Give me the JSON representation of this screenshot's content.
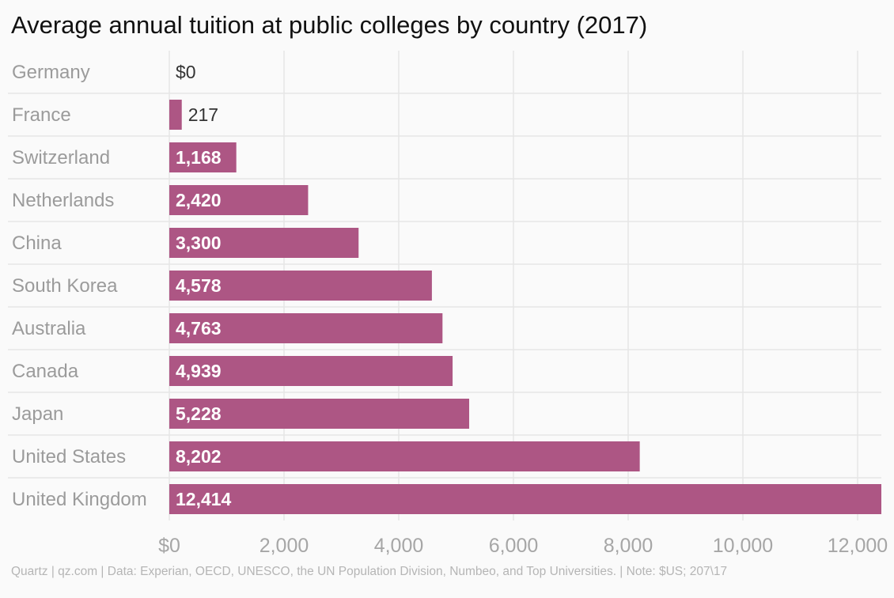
{
  "title": "Average annual tuition at public colleges by country (2017)",
  "source": "Quartz | qz.com | Data: Experian, OECD, UNESCO, the UN Population Division, Numbeo, and Top Universities. | Note: $US; 207\\17",
  "colors": {
    "bar": "#ad5684",
    "grid": "#e6e6e6"
  },
  "chart_data": {
    "type": "bar",
    "orientation": "horizontal",
    "categories": [
      "Germany",
      "France",
      "Switzerland",
      "Netherlands",
      "China",
      "South Korea",
      "Australia",
      "Canada",
      "Japan",
      "United States",
      "United Kingdom"
    ],
    "values": [
      0,
      217,
      1168,
      2420,
      3300,
      4578,
      4763,
      4939,
      5228,
      8202,
      12414
    ],
    "value_labels": [
      "$0",
      "217",
      "1,168",
      "2,420",
      "3,300",
      "4,578",
      "4,763",
      "4,939",
      "5,228",
      "8,202",
      "12,414"
    ],
    "x_ticks": [
      0,
      2000,
      4000,
      6000,
      8000,
      10000,
      12000
    ],
    "x_tick_labels": [
      "$0",
      "2,000",
      "4,000",
      "6,000",
      "8,000",
      "10,000",
      "12,000"
    ],
    "xlim": [
      0,
      12414
    ],
    "grid": true,
    "legend": "none"
  }
}
